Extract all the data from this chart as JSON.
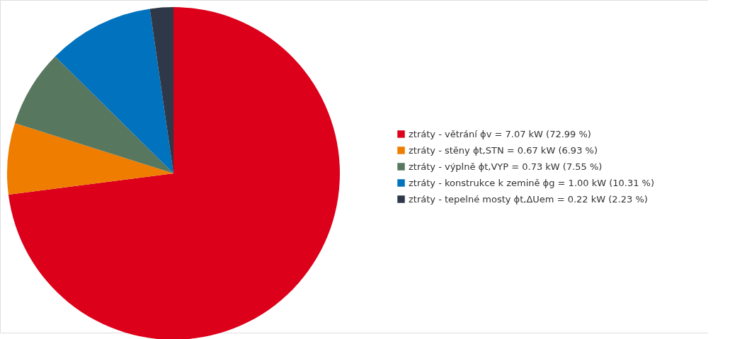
{
  "chart_data": {
    "type": "pie",
    "categories": [
      "ztráty - větrání ϕv = 7.07 kW (72.99 %)",
      "ztráty - stěny ϕt,STN = 0.67 kW (6.93 %)",
      "ztráty - výplně ϕt,VYP = 0.73 kW (7.55 %)",
      "ztráty - konstrukce k zemině ϕg = 1.00 kW (10.31 %)",
      "ztráty - tepelné mosty ϕt,ΔUem = 0.22 kW (2.23 %)"
    ],
    "values": [
      7.07,
      0.67,
      0.73,
      1.0,
      0.22
    ],
    "colors": [
      "#dc001a",
      "#ee7d00",
      "#58775f",
      "#0072be",
      "#2f3848"
    ],
    "legend": "right"
  }
}
